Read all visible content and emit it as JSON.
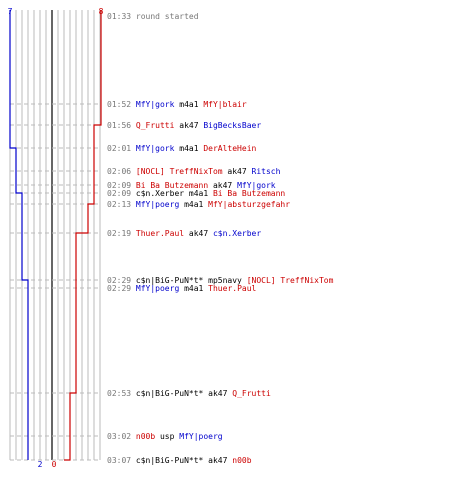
{
  "chart_data": {
    "type": "line",
    "title": "",
    "xlabel": "",
    "ylabel": "",
    "start_labels": {
      "blue": "7",
      "red": "8"
    },
    "end_labels": {
      "blue": "2",
      "red": "0"
    },
    "series": [
      {
        "key": "blue",
        "color": "#0000cc",
        "values": [
          7,
          7,
          7,
          7,
          6,
          6,
          6,
          5,
          5,
          5,
          4,
          4,
          4,
          4,
          4,
          4,
          3,
          3,
          2
        ]
      },
      {
        "key": "red",
        "color": "#cc0000",
        "values": [
          8,
          8,
          8,
          7,
          7,
          7,
          7,
          7,
          6,
          5,
          5,
          5,
          4,
          4,
          3,
          3,
          2,
          1,
          0
        ]
      }
    ],
    "events": [
      {
        "time": "01:33",
        "parts": [
          {
            "t": "round started",
            "c": "gray"
          }
        ]
      },
      {
        "time": "01:52",
        "parts": [
          {
            "t": "MfY|gork",
            "c": "blue"
          },
          {
            "t": " m4a1 ",
            "c": "black"
          },
          {
            "t": "MfY|blair",
            "c": "red"
          }
        ]
      },
      {
        "time": "01:56",
        "parts": [
          {
            "t": "Q_Frutti",
            "c": "red"
          },
          {
            "t": " ak47 ",
            "c": "black"
          },
          {
            "t": "BigBecksBaer",
            "c": "blue"
          }
        ]
      },
      {
        "time": "02:01",
        "parts": [
          {
            "t": "MfY|gork",
            "c": "blue"
          },
          {
            "t": " m4a1 ",
            "c": "black"
          },
          {
            "t": "DerAlteHein",
            "c": "red"
          }
        ]
      },
      {
        "time": "02:06",
        "parts": [
          {
            "t": "[NOCL] TreffNixTom",
            "c": "red"
          },
          {
            "t": " ak47 ",
            "c": "black"
          },
          {
            "t": "Ritsch",
            "c": "blue"
          }
        ]
      },
      {
        "time": "02:09",
        "parts": [
          {
            "t": "Bi Ba Butzemann",
            "c": "red"
          },
          {
            "t": " ak47 ",
            "c": "black"
          },
          {
            "t": "MfY|gork",
            "c": "blue"
          }
        ]
      },
      {
        "time": "02:09",
        "parts": [
          {
            "t": "c$n.Xerber",
            "c": "black"
          },
          {
            "t": " m4a1 ",
            "c": "black"
          },
          {
            "t": "Bi Ba Butzemann",
            "c": "red"
          }
        ]
      },
      {
        "time": "02:13",
        "parts": [
          {
            "t": "MfY|poerg",
            "c": "blue"
          },
          {
            "t": " m4a1 ",
            "c": "black"
          },
          {
            "t": "MfY|absturzgefahr",
            "c": "red"
          }
        ]
      },
      {
        "time": "02:19",
        "parts": [
          {
            "t": "Thuer.Paul",
            "c": "red"
          },
          {
            "t": " ak47 ",
            "c": "black"
          },
          {
            "t": "c$n.Xerber",
            "c": "blue"
          }
        ]
      },
      {
        "time": "02:29",
        "parts": [
          {
            "t": "c$n|BiG-PuN*t*",
            "c": "black"
          },
          {
            "t": " mp5navy ",
            "c": "black"
          },
          {
            "t": "[NOCL] TreffNixTom",
            "c": "red"
          }
        ]
      },
      {
        "time": "02:29",
        "parts": [
          {
            "t": "MfY|poerg",
            "c": "blue"
          },
          {
            "t": " m4a1 ",
            "c": "black"
          },
          {
            "t": "Thuer.Paul",
            "c": "red"
          }
        ]
      },
      {
        "time": "02:53",
        "parts": [
          {
            "t": "c$n|BiG-PuN*t*",
            "c": "black"
          },
          {
            "t": " ak47 ",
            "c": "black"
          },
          {
            "t": "Q_Frutti",
            "c": "red"
          }
        ]
      },
      {
        "time": "03:02",
        "parts": [
          {
            "t": "n00b",
            "c": "red"
          },
          {
            "t": " usp ",
            "c": "black"
          },
          {
            "t": "MfY|poerg",
            "c": "blue"
          }
        ]
      },
      {
        "time": "03:07",
        "parts": [
          {
            "t": "c$n|BiG-PuN*t*",
            "c": "black"
          },
          {
            "t": " ak47 ",
            "c": "black"
          },
          {
            "t": "n00b",
            "c": "red"
          }
        ]
      }
    ],
    "colors": {
      "blue": "#0000cc",
      "red": "#cc0000",
      "black": "#000000",
      "gray": "#777777",
      "grid": "#bbbbbb",
      "center": "#666666"
    }
  }
}
